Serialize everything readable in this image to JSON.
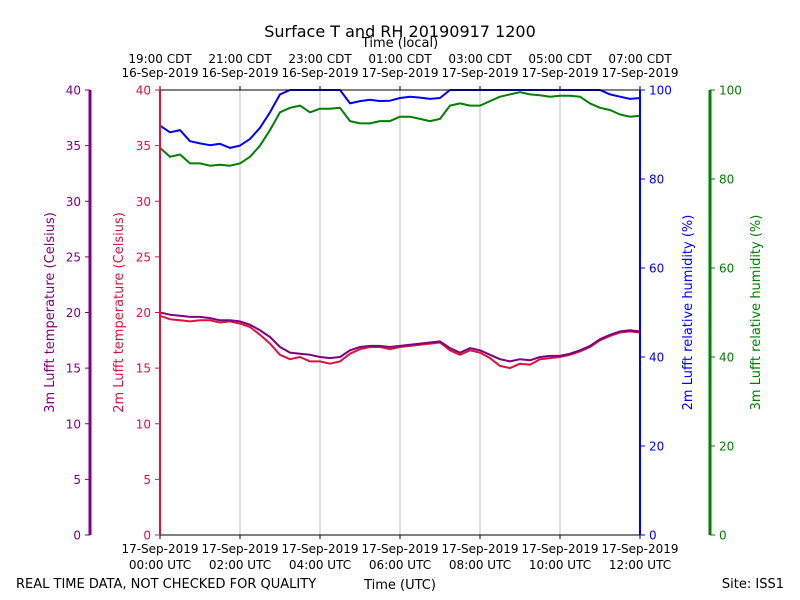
{
  "chart_data": {
    "type": "line",
    "title": "Surface T and RH 20190917 1200",
    "top_axis_label": "Time (local)",
    "xlabel": "Time (UTC)",
    "footer_left": "REAL TIME DATA, NOT CHECKED FOR QUALITY",
    "footer_right": "Site: ISS1",
    "x_ticks_utc": [
      [
        "17-Sep-2019",
        "00:00 UTC"
      ],
      [
        "17-Sep-2019",
        "02:00 UTC"
      ],
      [
        "17-Sep-2019",
        "04:00 UTC"
      ],
      [
        "17-Sep-2019",
        "06:00 UTC"
      ],
      [
        "17-Sep-2019",
        "08:00 UTC"
      ],
      [
        "17-Sep-2019",
        "10:00 UTC"
      ],
      [
        "17-Sep-2019",
        "12:00 UTC"
      ]
    ],
    "x_ticks_local": [
      [
        "19:00 CDT",
        "16-Sep-2019"
      ],
      [
        "21:00 CDT",
        "16-Sep-2019"
      ],
      [
        "23:00 CDT",
        "16-Sep-2019"
      ],
      [
        "01:00 CDT",
        "17-Sep-2019"
      ],
      [
        "03:00 CDT",
        "17-Sep-2019"
      ],
      [
        "05:00 CDT",
        "17-Sep-2019"
      ],
      [
        "07:00 CDT",
        "17-Sep-2019"
      ]
    ],
    "xlim_hours": [
      0,
      12
    ],
    "axes": [
      {
        "id": "t3",
        "label": "3m Lufft temperature (Celsius)",
        "color": "#800080",
        "ylim": [
          0,
          40
        ],
        "ticks": [
          "0",
          "5",
          "10",
          "15",
          "20",
          "25",
          "30",
          "35",
          "40"
        ]
      },
      {
        "id": "t2",
        "label": "2m Lufft temperature (Celsius)",
        "color": "#dc143c",
        "ylim": [
          0,
          40
        ],
        "ticks": [
          "0",
          "5",
          "10",
          "15",
          "20",
          "25",
          "30",
          "35",
          "40"
        ]
      },
      {
        "id": "rh2",
        "label": "2m Lufft relative humidity (%)",
        "color": "#0000ff",
        "ylim": [
          0,
          100
        ],
        "ticks": [
          "0",
          "20",
          "40",
          "60",
          "80",
          "100"
        ]
      },
      {
        "id": "rh3",
        "label": "3m Lufft relative humidity (%)",
        "color": "#008000",
        "ylim": [
          0,
          100
        ],
        "ticks": [
          "0",
          "20",
          "40",
          "60",
          "80",
          "100"
        ]
      }
    ],
    "series": [
      {
        "name": "3m Lufft temperature",
        "axis": "t3",
        "color": "#800080",
        "x": [
          0,
          0.25,
          0.5,
          0.75,
          1,
          1.25,
          1.5,
          1.75,
          2,
          2.25,
          2.5,
          2.75,
          3,
          3.25,
          3.5,
          3.75,
          4,
          4.25,
          4.5,
          4.75,
          5,
          5.25,
          5.5,
          5.75,
          6,
          6.25,
          6.5,
          6.75,
          7,
          7.25,
          7.5,
          7.75,
          8,
          8.25,
          8.5,
          8.75,
          9,
          9.25,
          9.5,
          9.75,
          10,
          10.25,
          10.5,
          10.75,
          11,
          11.25,
          11.5,
          11.75,
          12
        ],
        "values": [
          20,
          19.8,
          19.7,
          19.6,
          19.6,
          19.5,
          19.3,
          19.3,
          19.2,
          18.9,
          18.4,
          17.8,
          16.9,
          16.4,
          16.3,
          16.2,
          16.0,
          15.9,
          16.0,
          16.6,
          16.9,
          17.0,
          17.0,
          16.9,
          17.0,
          17.1,
          17.2,
          17.3,
          17.4,
          16.8,
          16.4,
          16.8,
          16.6,
          16.2,
          15.8,
          15.6,
          15.8,
          15.7,
          16.0,
          16.1,
          16.1,
          16.3,
          16.6,
          17.0,
          17.6,
          18.0,
          18.3,
          18.4,
          18.3
        ]
      },
      {
        "name": "2m Lufft temperature",
        "axis": "t2",
        "color": "#dc143c",
        "x": [
          0,
          0.25,
          0.5,
          0.75,
          1,
          1.25,
          1.5,
          1.75,
          2,
          2.25,
          2.5,
          2.75,
          3,
          3.25,
          3.5,
          3.75,
          4,
          4.25,
          4.5,
          4.75,
          5,
          5.25,
          5.5,
          5.75,
          6,
          6.25,
          6.5,
          6.75,
          7,
          7.25,
          7.5,
          7.75,
          8,
          8.25,
          8.5,
          8.75,
          9,
          9.25,
          9.5,
          9.75,
          10,
          10.25,
          10.5,
          10.75,
          11,
          11.25,
          11.5,
          11.75,
          12
        ],
        "values": [
          19.7,
          19.4,
          19.3,
          19.2,
          19.3,
          19.3,
          19.1,
          19.2,
          19.0,
          18.7,
          18.0,
          17.2,
          16.2,
          15.8,
          16.0,
          15.6,
          15.6,
          15.4,
          15.6,
          16.3,
          16.7,
          16.9,
          16.9,
          16.7,
          16.9,
          17.0,
          17.1,
          17.2,
          17.3,
          16.6,
          16.2,
          16.6,
          16.4,
          15.9,
          15.2,
          15.0,
          15.4,
          15.3,
          15.8,
          15.9,
          16.0,
          16.2,
          16.5,
          16.9,
          17.5,
          17.9,
          18.2,
          18.3,
          18.2
        ]
      },
      {
        "name": "2m Lufft relative humidity",
        "axis": "rh2",
        "color": "#0000ff",
        "x": [
          0,
          0.25,
          0.5,
          0.75,
          1,
          1.25,
          1.5,
          1.75,
          2,
          2.25,
          2.5,
          2.75,
          3,
          3.25,
          3.5,
          3.75,
          4,
          4.25,
          4.5,
          4.75,
          5,
          5.25,
          5.5,
          5.75,
          6,
          6.25,
          6.5,
          6.75,
          7,
          7.25,
          7.5,
          7.75,
          8,
          8.25,
          8.5,
          8.75,
          9,
          9.25,
          9.5,
          9.75,
          10,
          10.25,
          10.5,
          10.75,
          11,
          11.25,
          11.5,
          11.75,
          12
        ],
        "values": [
          92,
          90.5,
          91,
          88.5,
          88,
          87.6,
          87.9,
          87,
          87.5,
          89,
          91.5,
          95,
          99,
          100,
          100,
          100,
          100,
          100,
          100,
          97,
          97.5,
          97.8,
          97.5,
          97.6,
          98.2,
          98.5,
          98.3,
          98,
          98.2,
          100,
          100,
          100,
          100,
          100,
          100,
          100,
          100,
          100,
          100,
          100,
          100,
          100,
          100,
          100,
          100,
          99,
          98.5,
          98,
          98.2
        ]
      },
      {
        "name": "3m Lufft relative humidity",
        "axis": "rh3",
        "color": "#008000",
        "x": [
          0,
          0.25,
          0.5,
          0.75,
          1,
          1.25,
          1.5,
          1.75,
          2,
          2.25,
          2.5,
          2.75,
          3,
          3.25,
          3.5,
          3.75,
          4,
          4.25,
          4.5,
          4.75,
          5,
          5.25,
          5.5,
          5.75,
          6,
          6.25,
          6.5,
          6.75,
          7,
          7.25,
          7.5,
          7.75,
          8,
          8.25,
          8.5,
          8.75,
          9,
          9.25,
          9.5,
          9.75,
          10,
          10.25,
          10.5,
          10.75,
          11,
          11.25,
          11.5,
          11.75,
          12
        ],
        "values": [
          87,
          85,
          85.5,
          83.5,
          83.5,
          83,
          83.2,
          83,
          83.5,
          85,
          87.5,
          91,
          95,
          96,
          96.5,
          95,
          95.8,
          95.8,
          96,
          93,
          92.5,
          92.5,
          93,
          93,
          94,
          94,
          93.5,
          93,
          93.5,
          96.5,
          97,
          96.5,
          96.5,
          97.5,
          98.5,
          99,
          99.5,
          99,
          98.8,
          98.5,
          98.7,
          98.7,
          98.5,
          97,
          96,
          95.5,
          94.5,
          94,
          94.2
        ]
      }
    ]
  }
}
